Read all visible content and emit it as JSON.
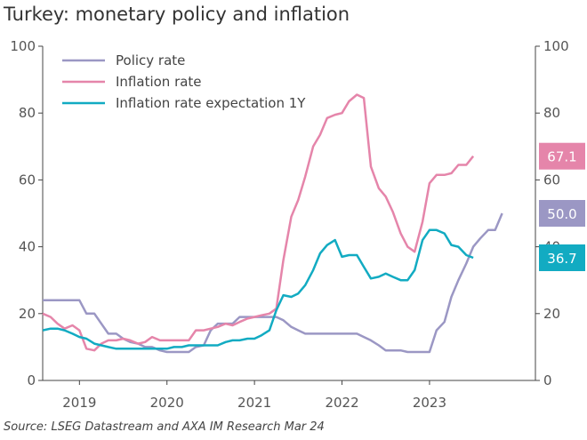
{
  "title": "Turkey: monetary policy and inflation",
  "source": "Source: LSEG Datastream and AXA IM Research Mar 24",
  "chart_data": {
    "type": "line",
    "ylim": [
      0,
      100
    ],
    "yticks": [
      0,
      20,
      40,
      60,
      80,
      100
    ],
    "xlim": [
      2018.58,
      2024.21
    ],
    "xticks": [
      {
        "label": "2019",
        "pos": 2019.0
      },
      {
        "label": "2020",
        "pos": 2020.0
      },
      {
        "label": "2021",
        "pos": 2021.0
      },
      {
        "label": "2022",
        "pos": 2022.0
      },
      {
        "label": "2023",
        "pos": 2023.0
      }
    ],
    "legend_position": "top-left",
    "series": [
      {
        "name": "Policy rate",
        "color": "#9b97c4",
        "end_label": "50.0",
        "points": [
          [
            2018.58,
            24
          ],
          [
            2018.67,
            24
          ],
          [
            2018.75,
            24
          ],
          [
            2018.83,
            24
          ],
          [
            2018.92,
            24
          ],
          [
            2019.0,
            24
          ],
          [
            2019.08,
            20
          ],
          [
            2019.17,
            20
          ],
          [
            2019.25,
            17
          ],
          [
            2019.33,
            14
          ],
          [
            2019.42,
            14
          ],
          [
            2019.5,
            12.5
          ],
          [
            2019.58,
            11.5
          ],
          [
            2019.67,
            11
          ],
          [
            2019.75,
            10
          ],
          [
            2019.83,
            10
          ],
          [
            2019.92,
            9
          ],
          [
            2020.0,
            8.5
          ],
          [
            2020.08,
            8.5
          ],
          [
            2020.17,
            8.5
          ],
          [
            2020.25,
            8.5
          ],
          [
            2020.33,
            10
          ],
          [
            2020.42,
            10.5
          ],
          [
            2020.5,
            15
          ],
          [
            2020.58,
            17
          ],
          [
            2020.67,
            17
          ],
          [
            2020.75,
            17
          ],
          [
            2020.83,
            19
          ],
          [
            2020.92,
            19
          ],
          [
            2021.0,
            19
          ],
          [
            2021.08,
            19
          ],
          [
            2021.17,
            19
          ],
          [
            2021.25,
            19
          ],
          [
            2021.33,
            18
          ],
          [
            2021.42,
            16
          ],
          [
            2021.5,
            15
          ],
          [
            2021.58,
            14
          ],
          [
            2021.67,
            14
          ],
          [
            2021.75,
            14
          ],
          [
            2021.83,
            14
          ],
          [
            2021.92,
            14
          ],
          [
            2022.0,
            14
          ],
          [
            2022.08,
            14
          ],
          [
            2022.17,
            14
          ],
          [
            2022.25,
            13
          ],
          [
            2022.33,
            12
          ],
          [
            2022.42,
            10.5
          ],
          [
            2022.5,
            9
          ],
          [
            2022.58,
            9
          ],
          [
            2022.67,
            9
          ],
          [
            2022.75,
            8.5
          ],
          [
            2022.83,
            8.5
          ],
          [
            2022.92,
            8.5
          ],
          [
            2023.0,
            8.5
          ],
          [
            2023.08,
            15
          ],
          [
            2023.17,
            17.5
          ],
          [
            2023.25,
            25
          ],
          [
            2023.33,
            30
          ],
          [
            2023.42,
            35
          ],
          [
            2023.5,
            40
          ],
          [
            2023.58,
            42.5
          ],
          [
            2023.67,
            45
          ],
          [
            2023.75,
            45
          ],
          [
            2023.83,
            50
          ]
        ]
      },
      {
        "name": "Inflation rate",
        "color": "#e585aa",
        "end_label": "67.1",
        "points": [
          [
            2018.58,
            20
          ],
          [
            2018.67,
            19
          ],
          [
            2018.75,
            17
          ],
          [
            2018.83,
            15.5
          ],
          [
            2018.92,
            16.5
          ],
          [
            2019.0,
            15
          ],
          [
            2019.08,
            9.5
          ],
          [
            2019.17,
            9
          ],
          [
            2019.25,
            11
          ],
          [
            2019.33,
            12
          ],
          [
            2019.42,
            12
          ],
          [
            2019.5,
            12.5
          ],
          [
            2019.58,
            12
          ],
          [
            2019.67,
            11
          ],
          [
            2019.75,
            11.5
          ],
          [
            2019.83,
            13
          ],
          [
            2019.92,
            12
          ],
          [
            2020.0,
            12
          ],
          [
            2020.08,
            12
          ],
          [
            2020.17,
            12
          ],
          [
            2020.25,
            12
          ],
          [
            2020.33,
            15
          ],
          [
            2020.42,
            15
          ],
          [
            2020.5,
            15.5
          ],
          [
            2020.58,
            16
          ],
          [
            2020.67,
            17
          ],
          [
            2020.75,
            16.5
          ],
          [
            2020.83,
            17.5
          ],
          [
            2020.92,
            18.5
          ],
          [
            2021.0,
            19
          ],
          [
            2021.08,
            19.5
          ],
          [
            2021.17,
            20
          ],
          [
            2021.25,
            21.5
          ],
          [
            2021.33,
            36
          ],
          [
            2021.42,
            49
          ],
          [
            2021.5,
            54
          ],
          [
            2021.58,
            61
          ],
          [
            2021.67,
            70
          ],
          [
            2021.75,
            73.5
          ],
          [
            2021.83,
            78.5
          ],
          [
            2021.92,
            79.5
          ],
          [
            2022.0,
            80
          ],
          [
            2022.08,
            83.5
          ],
          [
            2022.17,
            85.5
          ],
          [
            2022.25,
            84.5
          ],
          [
            2022.33,
            64
          ],
          [
            2022.42,
            57.5
          ],
          [
            2022.5,
            55
          ],
          [
            2022.58,
            50.5
          ],
          [
            2022.67,
            44
          ],
          [
            2022.75,
            40
          ],
          [
            2022.83,
            38.5
          ],
          [
            2022.92,
            47.5
          ],
          [
            2023.0,
            59
          ],
          [
            2023.08,
            61.5
          ],
          [
            2023.17,
            61.5
          ],
          [
            2023.25,
            62
          ],
          [
            2023.33,
            64.5
          ],
          [
            2023.42,
            64.5
          ],
          [
            2023.5,
            67.1
          ]
        ]
      },
      {
        "name": "Inflation rate expectation 1Y",
        "color": "#12abc2",
        "end_label": "36.7",
        "points": [
          [
            2018.58,
            15
          ],
          [
            2018.67,
            15.5
          ],
          [
            2018.75,
            15.5
          ],
          [
            2018.83,
            15
          ],
          [
            2018.92,
            14
          ],
          [
            2019.0,
            13
          ],
          [
            2019.08,
            12.5
          ],
          [
            2019.17,
            11
          ],
          [
            2019.25,
            10.5
          ],
          [
            2019.33,
            10
          ],
          [
            2019.42,
            9.5
          ],
          [
            2019.5,
            9.5
          ],
          [
            2019.58,
            9.5
          ],
          [
            2019.67,
            9.5
          ],
          [
            2019.75,
            9.5
          ],
          [
            2019.83,
            9.5
          ],
          [
            2019.92,
            9.5
          ],
          [
            2020.0,
            9.5
          ],
          [
            2020.08,
            10
          ],
          [
            2020.17,
            10
          ],
          [
            2020.25,
            10.5
          ],
          [
            2020.33,
            10.5
          ],
          [
            2020.42,
            10.5
          ],
          [
            2020.5,
            10.5
          ],
          [
            2020.58,
            10.5
          ],
          [
            2020.67,
            11.5
          ],
          [
            2020.75,
            12
          ],
          [
            2020.83,
            12
          ],
          [
            2020.92,
            12.5
          ],
          [
            2021.0,
            12.5
          ],
          [
            2021.08,
            13.5
          ],
          [
            2021.17,
            15
          ],
          [
            2021.25,
            21
          ],
          [
            2021.33,
            25.5
          ],
          [
            2021.42,
            25
          ],
          [
            2021.5,
            26
          ],
          [
            2021.58,
            28.5
          ],
          [
            2021.67,
            33
          ],
          [
            2021.75,
            38
          ],
          [
            2021.83,
            40.5
          ],
          [
            2021.92,
            42
          ],
          [
            2022.0,
            37
          ],
          [
            2022.08,
            37.5
          ],
          [
            2022.17,
            37.5
          ],
          [
            2022.25,
            34
          ],
          [
            2022.33,
            30.5
          ],
          [
            2022.42,
            31
          ],
          [
            2022.5,
            32
          ],
          [
            2022.58,
            31
          ],
          [
            2022.67,
            30
          ],
          [
            2022.75,
            30
          ],
          [
            2022.83,
            33
          ],
          [
            2022.92,
            42
          ],
          [
            2023.0,
            45
          ],
          [
            2023.08,
            45
          ],
          [
            2023.17,
            44
          ],
          [
            2023.25,
            40.5
          ],
          [
            2023.33,
            40
          ],
          [
            2023.42,
            37.5
          ],
          [
            2023.5,
            36.7
          ]
        ]
      }
    ]
  }
}
